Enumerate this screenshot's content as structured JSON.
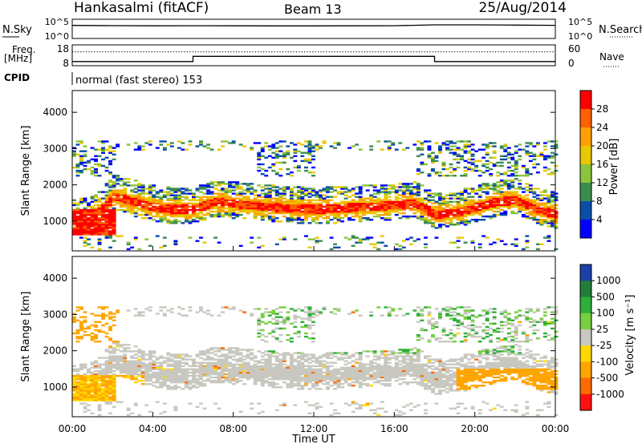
{
  "header": {
    "station": "Hankasalmi (fitACF)",
    "beam": "Beam 13",
    "date": "25/Aug/2014"
  },
  "nsky_panel": {
    "left_label": "N.Sky",
    "right_label": "N.Search",
    "left_ticks": [
      "10^5",
      "10^0"
    ],
    "right_ticks": [
      "10^5",
      "10^0"
    ]
  },
  "freq_panel": {
    "left_label_1": "Freq.",
    "left_label_2": "[MHz]",
    "right_label": "Nave",
    "left_ticks": [
      "18",
      "8"
    ],
    "right_ticks": [
      "60",
      "0"
    ]
  },
  "cpid_panel": {
    "label": "CPID",
    "text": "normal (fast stereo) 153"
  },
  "power_panel": {
    "ylabel": "Slant Range [km]",
    "colorbar_label": "Power [dB]",
    "colorbar_ticks": [
      "28",
      "24",
      "20",
      "16",
      "12",
      "8",
      "4"
    ],
    "colorbar_colors": [
      "#ff0000",
      "#ff6000",
      "#ffa000",
      "#e8c800",
      "#8cc43c",
      "#3c8c50",
      "#0a4ea8",
      "#0000ff"
    ]
  },
  "velocity_panel": {
    "ylabel": "Slant Range [km]",
    "colorbar_label": "Velocity [m s⁻¹]",
    "colorbar_ticks": [
      "1000",
      "500",
      "100",
      "25",
      "-25",
      "-100",
      "-500",
      "-1000"
    ],
    "colorbar_colors": [
      "#1d3fa8",
      "#227c3a",
      "#2eae3a",
      "#78cf40",
      "#c8c8c0",
      "#ffd800",
      "#ffa500",
      "#ff6a00",
      "#ff1010"
    ]
  },
  "x_axis": {
    "label": "Time UT",
    "ticks": [
      "00:00",
      "04:00",
      "08:00",
      "12:00",
      "16:00",
      "20:00",
      "00:00"
    ]
  },
  "chart_data": [
    {
      "type": "line",
      "panel": "N.Sky / N.Search",
      "x": [
        "00:00",
        "02:00",
        "04:00",
        "06:00",
        "08:00",
        "10:00",
        "12:00",
        "14:00",
        "16:00",
        "18:00",
        "20:00",
        "22:00",
        "24:00"
      ],
      "series": [
        {
          "name": "N.Sky",
          "values": [
            2500,
            2200,
            2000,
            2100,
            2000,
            1900,
            1900,
            2000,
            2100,
            3500,
            3400,
            3000,
            2600
          ]
        }
      ],
      "ylim_log10": [
        0,
        5
      ]
    },
    {
      "type": "line",
      "panel": "Freq. / Nave",
      "x": [
        "00:00",
        "06:00",
        "06:00",
        "18:00",
        "18:00",
        "24:00"
      ],
      "series": [
        {
          "name": "Freq.",
          "values": [
            10,
            10,
            12.5,
            12.5,
            10,
            10
          ]
        },
        {
          "name": "Nave",
          "values": [
            40,
            40,
            40,
            40,
            40,
            40
          ]
        }
      ],
      "ylim_freq": [
        8,
        18
      ],
      "ylim_nave": [
        0,
        60
      ]
    },
    {
      "type": "heatmap",
      "panel": "Power",
      "x_range_hours": [
        0,
        24
      ],
      "y_range_km": [
        180,
        4600
      ],
      "z_range_db": [
        0,
        32
      ],
      "ridge_km": [
        [
          0,
          1000
        ],
        [
          1,
          1050
        ],
        [
          2,
          1650
        ],
        [
          3,
          1500
        ],
        [
          4,
          1350
        ],
        [
          5,
          1300
        ],
        [
          6,
          1300
        ],
        [
          7,
          1500
        ],
        [
          8,
          1450
        ],
        [
          9,
          1400
        ],
        [
          10,
          1350
        ],
        [
          11,
          1320
        ],
        [
          12,
          1300
        ],
        [
          13,
          1320
        ],
        [
          14,
          1350
        ],
        [
          15,
          1380
        ],
        [
          16,
          1420
        ],
        [
          17,
          1450
        ],
        [
          18,
          1150
        ],
        [
          19,
          1200
        ],
        [
          20,
          1350
        ],
        [
          21,
          1500
        ],
        [
          22,
          1550
        ],
        [
          23,
          1300
        ],
        [
          24,
          1150
        ]
      ]
    },
    {
      "type": "heatmap",
      "panel": "Velocity",
      "x_range_hours": [
        0,
        24
      ],
      "y_range_km": [
        180,
        4600
      ],
      "z_range_ms": [
        -1000,
        1000
      ]
    }
  ]
}
